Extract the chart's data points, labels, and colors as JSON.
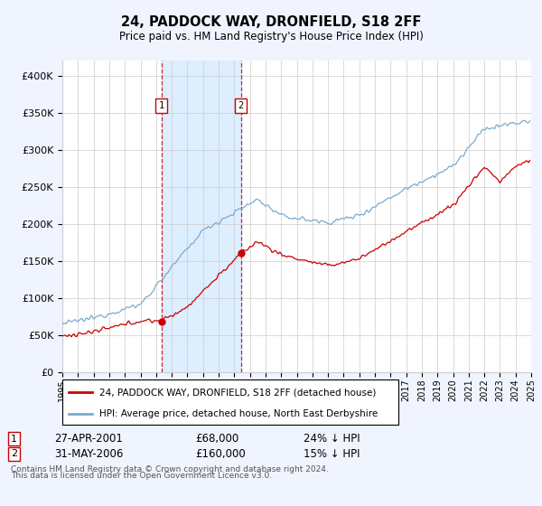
{
  "title": "24, PADDOCK WAY, DRONFIELD, S18 2FF",
  "subtitle": "Price paid vs. HM Land Registry's House Price Index (HPI)",
  "legend_line1": "24, PADDOCK WAY, DRONFIELD, S18 2FF (detached house)",
  "legend_line2": "HPI: Average price, detached house, North East Derbyshire",
  "transaction1_label": "1",
  "transaction1_date": "27-APR-2001",
  "transaction1_price": 68000,
  "transaction1_price_str": "£68,000",
  "transaction1_note": "24% ↓ HPI",
  "transaction2_label": "2",
  "transaction2_date": "31-MAY-2006",
  "transaction2_price": 160000,
  "transaction2_price_str": "£160,000",
  "transaction2_note": "15% ↓ HPI",
  "footer_line1": "Contains HM Land Registry data © Crown copyright and database right 2024.",
  "footer_line2": "This data is licensed under the Open Government Licence v3.0.",
  "red_color": "#cc0000",
  "blue_color": "#7aabcf",
  "bg_color": "#f0f4ff",
  "plot_bg": "#ffffff",
  "shaded_region_color": "#ddeeff",
  "grid_color": "#cccccc",
  "ylim": [
    0,
    420000
  ],
  "ytick_values": [
    0,
    50000,
    100000,
    150000,
    200000,
    250000,
    300000,
    350000,
    400000
  ],
  "ytick_labels": [
    "£0",
    "£50K",
    "£100K",
    "£150K",
    "£200K",
    "£250K",
    "£300K",
    "£350K",
    "£400K"
  ],
  "start_year": 1995,
  "end_year": 2025,
  "t1_year": 2001.33,
  "t2_year": 2006.42
}
